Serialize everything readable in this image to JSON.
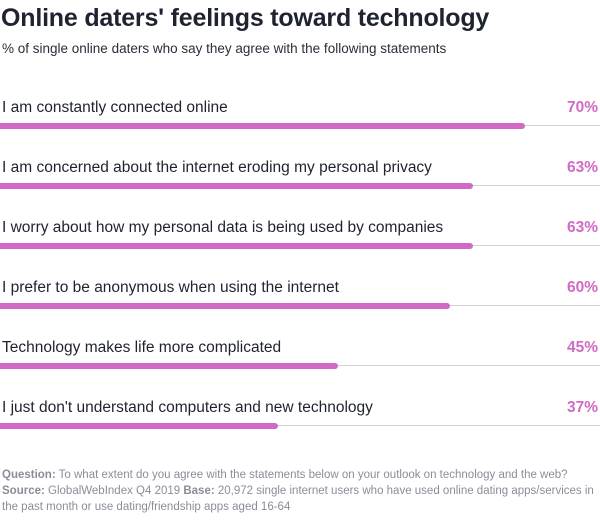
{
  "header": {
    "title": "Online daters' feelings toward technology",
    "subtitle": "% of single online daters who say they agree with the following statements"
  },
  "colors": {
    "bar": "#d16ac4",
    "value_text": "#d16ac4",
    "title_text": "#1f2330",
    "footer_text": "#8a8d9a"
  },
  "chart_data": {
    "type": "bar",
    "orientation": "horizontal",
    "title": "Online daters' feelings toward technology",
    "subtitle": "% of single online daters who say they agree with the following statements",
    "xlim": [
      0,
      80
    ],
    "categories": [
      "I am constantly connected online",
      "I am concerned about the internet eroding my personal privacy",
      "I worry about how my personal data is being used by companies",
      "I prefer to be anonymous when using the internet",
      "Technology makes life more complicated",
      "I just don't understand computers and new technology"
    ],
    "values": [
      70,
      63,
      63,
      60,
      45,
      37
    ],
    "value_labels": [
      "70%",
      "63%",
      "63%",
      "60%",
      "45%",
      "37%"
    ],
    "grid": false,
    "legend": "none"
  },
  "footer": {
    "question_label": "Question:",
    "question_text": " To what extent do you agree with the statements below on your outlook on technology and the web?",
    "source_label": "Source:",
    "source_text": " GlobalWebIndex Q4 2019 ",
    "base_label": "Base:",
    "base_text": " 20,972 single internet users who have used online dating apps/services in the past month or use dating/friendship apps aged 16-64"
  }
}
